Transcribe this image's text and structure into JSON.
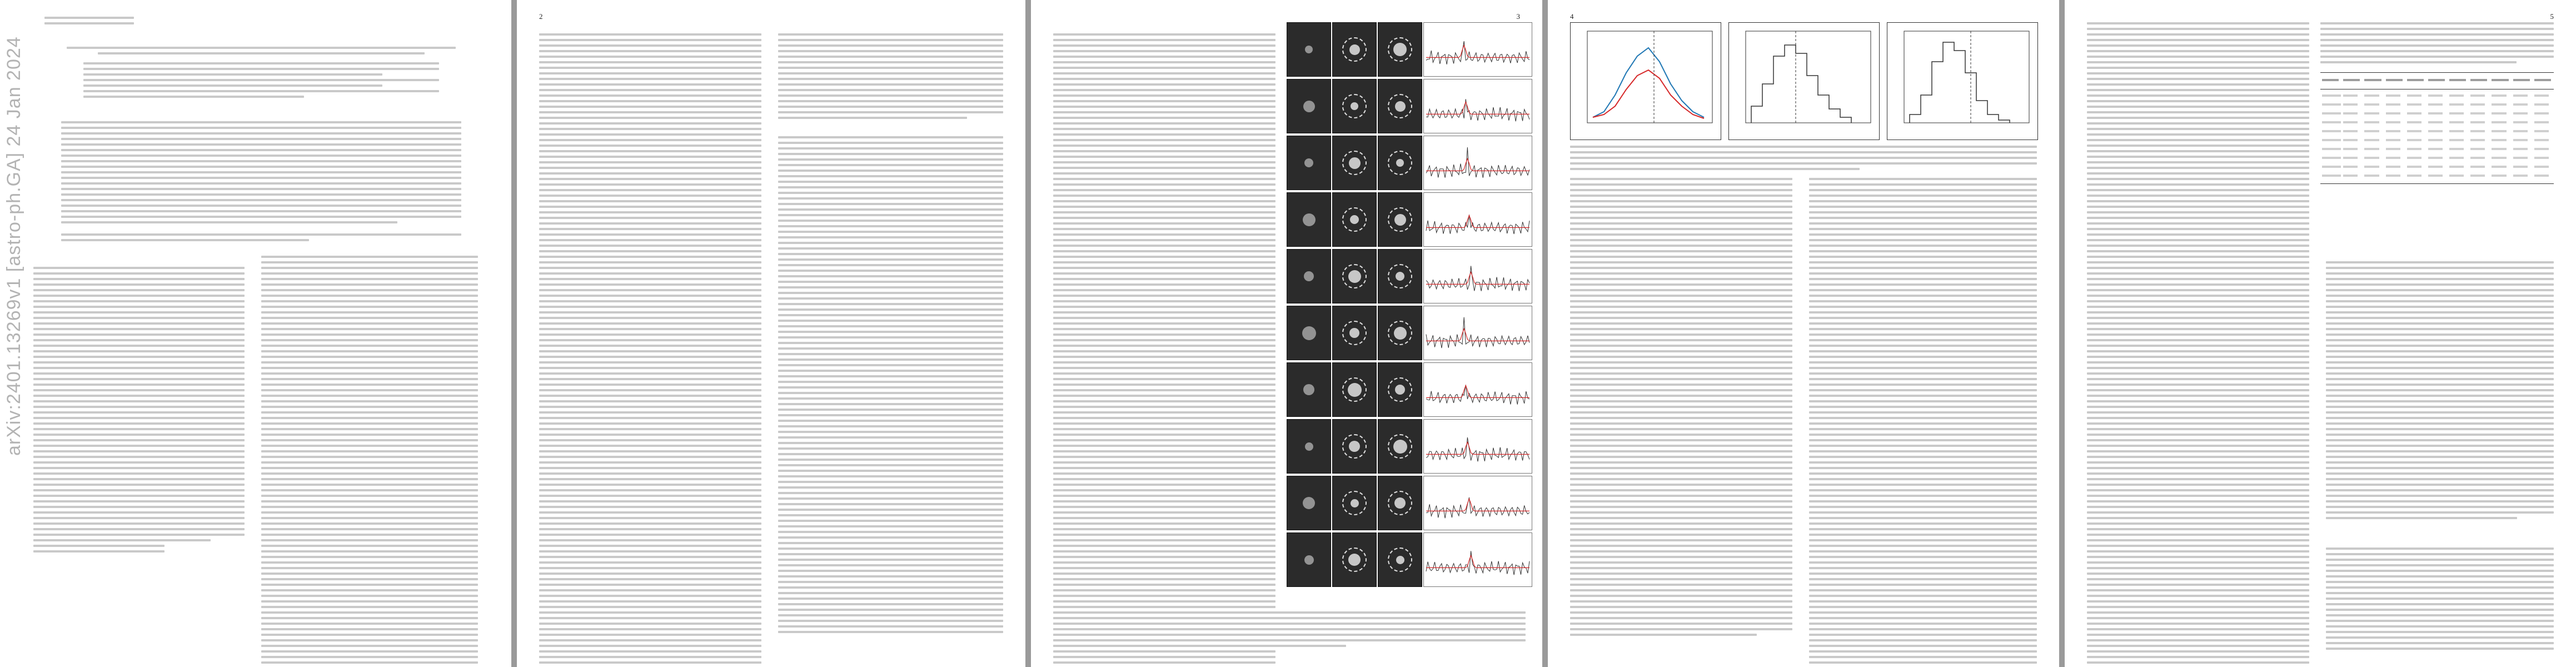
{
  "arxiv_stamp": "arXiv:2401.13269v1 [astro-ph.GA] 24 Jan 2024",
  "pages": [
    {
      "page_number": "",
      "running_head": "",
      "title": "",
      "section_heads": [
        "",
        "",
        ""
      ]
    },
    {
      "page_number": "2",
      "running_head": "",
      "section_heads": [
        "",
        "",
        "",
        ""
      ]
    },
    {
      "page_number": "3",
      "running_head": "",
      "figure_caption": ""
    },
    {
      "page_number": "4",
      "running_head": "",
      "section_heads": [
        ""
      ],
      "figure_caption": ""
    },
    {
      "page_number": "5",
      "running_head": "",
      "section_heads": [
        ""
      ],
      "table_caption": "",
      "table_headers": [
        "",
        "",
        "",
        "",
        "",
        "",
        "",
        "",
        "",
        "",
        ""
      ],
      "table_rows": [
        [
          "",
          "",
          "",
          "",
          "",
          "",
          "",
          "",
          "",
          "",
          ""
        ],
        [
          "",
          "",
          "",
          "",
          "",
          "",
          "",
          "",
          "",
          "",
          ""
        ],
        [
          "",
          "",
          "",
          "",
          "",
          "",
          "",
          "",
          "",
          "",
          ""
        ],
        [
          "",
          "",
          "",
          "",
          "",
          "",
          "",
          "",
          "",
          "",
          ""
        ],
        [
          "",
          "",
          "",
          "",
          "",
          "",
          "",
          "",
          "",
          "",
          ""
        ],
        [
          "",
          "",
          "",
          "",
          "",
          "",
          "",
          "",
          "",
          "",
          ""
        ],
        [
          "",
          "",
          "",
          "",
          "",
          "",
          "",
          "",
          "",
          "",
          ""
        ],
        [
          "",
          "",
          "",
          "",
          "",
          "",
          "",
          "",
          "",
          "",
          ""
        ],
        [
          "",
          "",
          "",
          "",
          "",
          "",
          "",
          "",
          "",
          "",
          ""
        ],
        [
          "",
          "",
          "",
          "",
          "",
          "",
          "",
          "",
          "",
          "",
          ""
        ]
      ]
    }
  ],
  "colors": {
    "background": "#9a9a9a",
    "page": "#ffffff",
    "text_placeholder": "#c9c9c9",
    "figure_dark": "#2b2b2b",
    "spectrum_line": "#333333",
    "fit_line": "#d62728"
  }
}
